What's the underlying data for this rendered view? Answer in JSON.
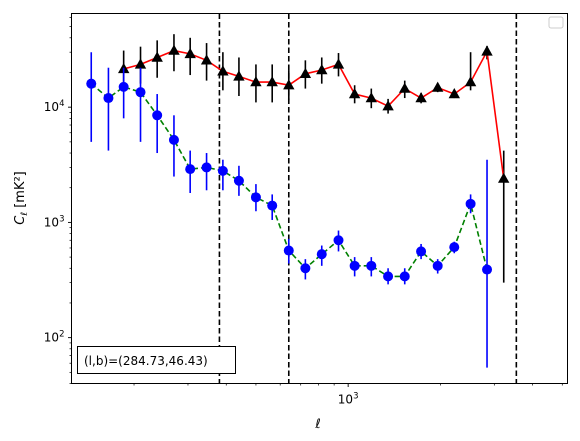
{
  "chart_data": {
    "type": "line",
    "xscale": "log",
    "yscale": "log",
    "xlim": [
      125,
      5200
    ],
    "ylim": [
      40,
      65000
    ],
    "xlabel": "ℓ",
    "ylabel_main": "C",
    "ylabel_sub": "ℓ",
    "ylabel_unit": "[mK²]",
    "x_ticks": [
      {
        "value": 1000,
        "base": "10",
        "exp": "3"
      }
    ],
    "y_ticks": [
      {
        "value": 100,
        "base": "10",
        "exp": "2"
      },
      {
        "value": 1000,
        "base": "10",
        "exp": "3"
      },
      {
        "value": 10000,
        "base": "10",
        "exp": "4"
      }
    ],
    "x": [
      145,
      165,
      185,
      210,
      238,
      270,
      305,
      345,
      390,
      440,
      500,
      565,
      640,
      725,
      820,
      930,
      1050,
      1190,
      1350,
      1530,
      1730,
      1960,
      2220,
      2510,
      2840,
      3220,
      3650,
      4140,
      4690
    ],
    "series": [
      {
        "color": "#ff0000",
        "marker": "triangle",
        "marker_color": "#000000",
        "linestyle": "solid",
        "errorbar_color": "#000000",
        "values": [
          null,
          21500,
          23500,
          27000,
          31000,
          29000,
          25500,
          20500,
          18500,
          16500,
          16500,
          15500,
          19500,
          21000,
          23500,
          13000,
          12000,
          10200,
          14500,
          12000,
          14800,
          13000,
          16500,
          30500,
          2400,
          null,
          null,
          null,
          null
        ],
        "x_override": [
          165,
          185,
          210,
          238,
          270,
          305,
          345,
          390,
          440,
          500,
          565,
          640,
          725,
          820,
          930,
          1050,
          1190,
          1350,
          1530,
          1730,
          1960,
          2220,
          2510,
          2840,
          3220,
          3650,
          4140,
          4690,
          5000
        ],
        "err_low": [
          null,
          14500,
          16000,
          18000,
          20500,
          19000,
          17000,
          14000,
          12500,
          11000,
          11000,
          11500,
          14500,
          16000,
          18500,
          10800,
          9800,
          8800,
          12000,
          10800,
          13500,
          12000,
          14000,
          26000,
          300,
          null,
          null,
          null,
          null
        ],
        "err_high": [
          null,
          31000,
          33500,
          38000,
          43000,
          40000,
          36000,
          30000,
          27000,
          23500,
          23500,
          21000,
          25500,
          27000,
          29500,
          15500,
          14500,
          11800,
          17000,
          13300,
          16200,
          14000,
          30000,
          34000,
          4200,
          null,
          null,
          null,
          null
        ]
      },
      {
        "color": "#008000",
        "marker": "circle",
        "marker_color": "#0000ff",
        "linestyle": "dashed",
        "errorbar_color": "#0000ff",
        "values": [
          16000,
          12000,
          15000,
          13500,
          8500,
          5200,
          2900,
          3000,
          2800,
          2300,
          1650,
          1400,
          570,
          400,
          530,
          700,
          420,
          420,
          340,
          340,
          560,
          420,
          610,
          1450,
          390,
          null,
          null,
          null,
          null
        ],
        "err_low": [
          5000,
          4200,
          8000,
          5000,
          4000,
          2500,
          1800,
          1900,
          1900,
          1700,
          1250,
          1050,
          440,
          320,
          420,
          560,
          340,
          340,
          290,
          290,
          480,
          360,
          540,
          1200,
          55,
          null,
          null,
          null,
          null
        ],
        "err_high": [
          30000,
          22000,
          22000,
          22000,
          13000,
          8500,
          4200,
          4000,
          3500,
          3100,
          2150,
          1750,
          720,
          480,
          630,
          850,
          500,
          500,
          400,
          400,
          650,
          480,
          680,
          1750,
          3500,
          null,
          null,
          null,
          null
        ]
      }
    ],
    "vlines": [
      380,
      640,
      3540
    ],
    "annotation": "(l,b)=(284.73,46.43)",
    "legend": {
      "placement": "top-right",
      "entries": []
    },
    "grid": false
  }
}
